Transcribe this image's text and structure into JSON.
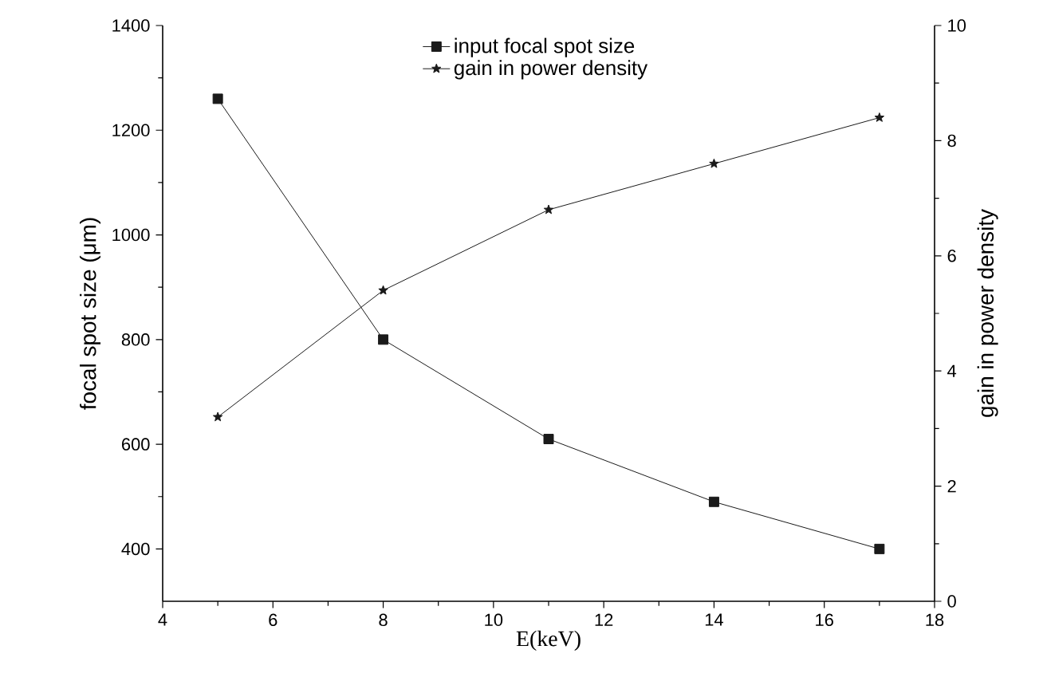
{
  "chart_data": {
    "type": "line",
    "xlabel": "E(keV)",
    "ylabel": "focal spot size (μm)",
    "y2label": "gain in power density",
    "x": [
      5,
      8,
      11,
      14,
      17
    ],
    "series": [
      {
        "name": "input focal spot size",
        "color": "#1a1a1a",
        "marker": "square",
        "values": [
          1260,
          800,
          610,
          490,
          400
        ]
      },
      {
        "name": "gain in power density",
        "color": "#1a1a1a",
        "marker": "star",
        "axis": "y2",
        "values": [
          3.2,
          5.4,
          6.8,
          7.6,
          8.4
        ]
      }
    ],
    "xlim": [
      4,
      18
    ],
    "xticks": [
      4,
      6,
      8,
      10,
      12,
      14,
      16,
      18
    ],
    "ylim": [
      300,
      1400
    ],
    "yticks": [
      400,
      600,
      800,
      1000,
      1200,
      1400
    ],
    "y2lim": [
      0,
      10
    ],
    "y2ticks": [
      0,
      2,
      4,
      6,
      8,
      10
    ],
    "legend": "top",
    "line_style": "solid",
    "grid": false
  }
}
